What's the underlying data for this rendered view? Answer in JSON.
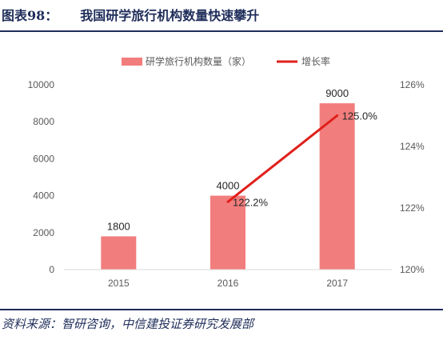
{
  "figure": {
    "label": "图表98：",
    "title": "我国研学旅行机构数量快速攀升",
    "source": "资料来源：智研咨询，中信建投证券研究发展部"
  },
  "chart_data": {
    "type": "bar",
    "title": "",
    "xlabel": "",
    "ylabel": "",
    "categories": [
      "2015",
      "2016",
      "2017"
    ],
    "series": [
      {
        "name": "研学旅行机构数量（家）",
        "type": "bar",
        "axis": "left",
        "values": [
          1800,
          4000,
          9000
        ],
        "labels": [
          "1800",
          "4000",
          "9000"
        ],
        "color": "#f27d7d"
      },
      {
        "name": "增长率",
        "type": "line",
        "axis": "right",
        "values": [
          null,
          122.2,
          125.0
        ],
        "labels": [
          "",
          "122.2%",
          "125.0%"
        ],
        "color": "#e0201b"
      }
    ],
    "y_left": {
      "min": 0,
      "max": 10000,
      "ticks": [
        0,
        2000,
        4000,
        6000,
        8000,
        10000
      ],
      "tick_labels": [
        "0",
        "2000",
        "4000",
        "6000",
        "8000",
        "10000"
      ]
    },
    "y_right": {
      "min": 120,
      "max": 126,
      "ticks": [
        120,
        122,
        124,
        126
      ],
      "tick_labels": [
        "120%",
        "122%",
        "124%",
        "126%"
      ]
    },
    "grid": false,
    "legend": "top"
  }
}
